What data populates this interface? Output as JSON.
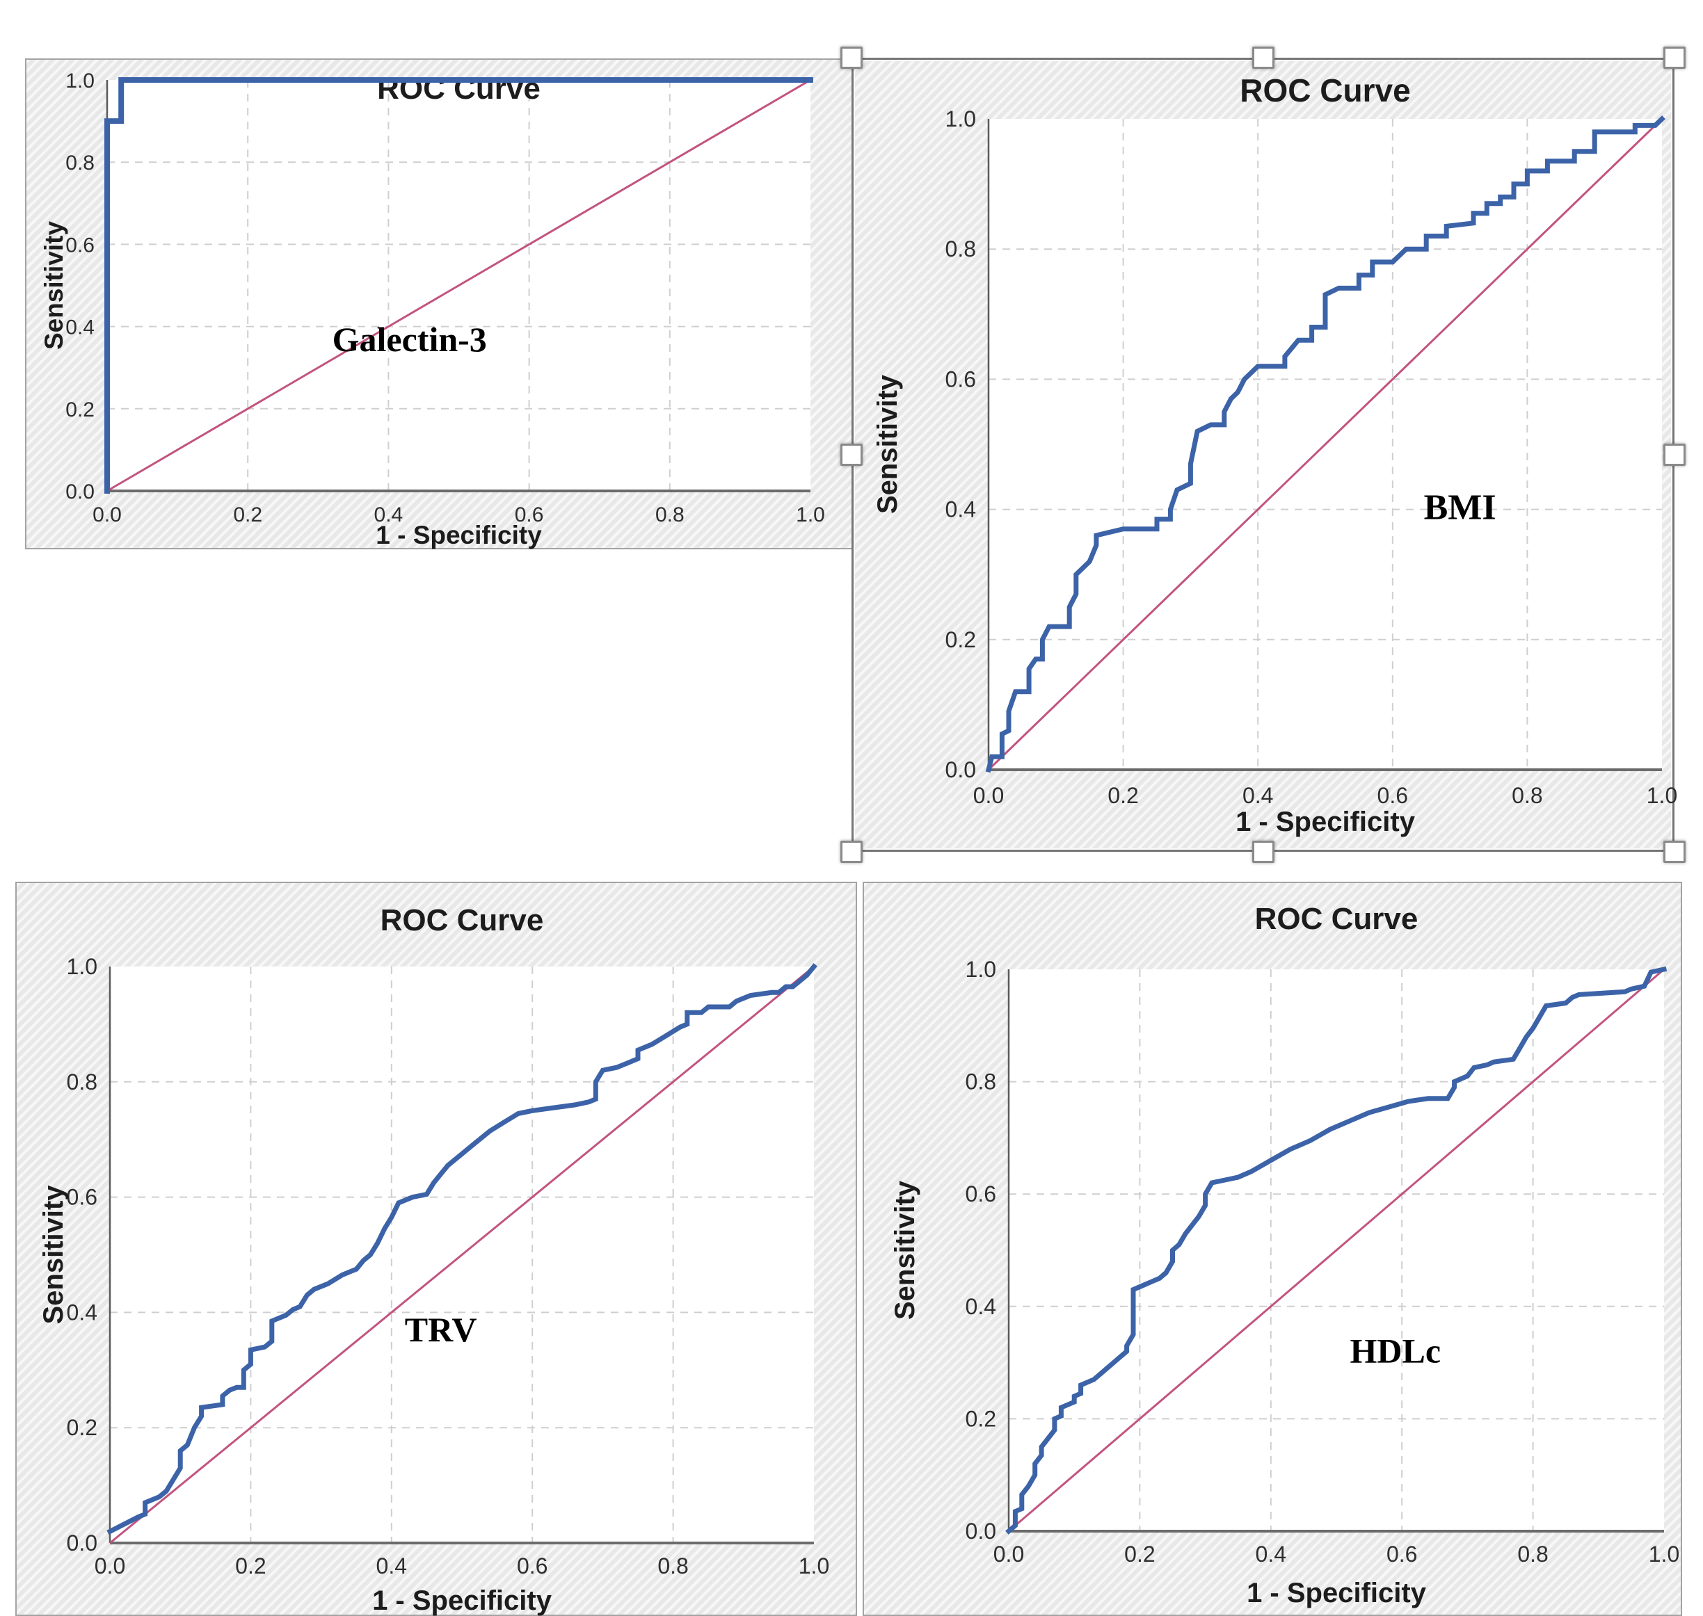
{
  "ui": {
    "selected_panel": "BMI",
    "selection_handles": [
      "top-left",
      "top-middle",
      "top-right",
      "middle-left",
      "middle-right",
      "bottom-left",
      "bottom-middle",
      "bottom-right"
    ]
  },
  "colors": {
    "roc_curve": "#3C63A8",
    "reference_line": "#C2547F",
    "grid": "#cfcfcf",
    "axis": "#6b6b6b",
    "text": "#1c1c1c"
  },
  "chart_data": [
    {
      "type": "line",
      "panel": "top-left",
      "title": "ROC Curve",
      "xlabel": "1 - Specificity",
      "ylabel": "Sensitivity",
      "xlim": [
        0,
        1
      ],
      "ylim": [
        0,
        1
      ],
      "xticks": [
        "0.0",
        "0.2",
        "0.4",
        "0.6",
        "0.8",
        "1.0"
      ],
      "yticks": [
        "1.0",
        "0.8",
        "0.6",
        "0.4",
        "0.2",
        "0.0"
      ],
      "grid": true,
      "annotation": {
        "text": "Galectin-3",
        "x": 0.43,
        "y": 0.34
      },
      "series": [
        {
          "name": "ROC curve",
          "points": [
            [
              0,
              0
            ],
            [
              0,
              0.9
            ],
            [
              0.02,
              0.9
            ],
            [
              0.02,
              1
            ],
            [
              1,
              1
            ]
          ]
        },
        {
          "name": "Reference line",
          "points": [
            [
              0,
              0
            ],
            [
              1,
              1
            ]
          ]
        }
      ]
    },
    {
      "type": "line",
      "panel": "top-right",
      "title": "ROC Curve",
      "xlabel": "1 - Specificity",
      "ylabel": "Sensitivity",
      "xlim": [
        0,
        1
      ],
      "ylim": [
        0,
        1
      ],
      "xticks": [
        "0.0",
        "0.2",
        "0.4",
        "0.6",
        "0.8",
        "1.0"
      ],
      "yticks": [
        "1.0",
        "0.8",
        "0.6",
        "0.4",
        "0.2",
        "0.0"
      ],
      "grid": true,
      "annotation": {
        "text": "BMI",
        "x": 0.7,
        "y": 0.385
      },
      "series": [
        {
          "name": "ROC curve",
          "points": [
            [
              0,
              0
            ],
            [
              0.005,
              0.02
            ],
            [
              0.02,
              0.02
            ],
            [
              0.02,
              0.055
            ],
            [
              0.03,
              0.06
            ],
            [
              0.03,
              0.09
            ],
            [
              0.04,
              0.12
            ],
            [
              0.06,
              0.12
            ],
            [
              0.06,
              0.155
            ],
            [
              0.07,
              0.17
            ],
            [
              0.08,
              0.17
            ],
            [
              0.08,
              0.2
            ],
            [
              0.09,
              0.22
            ],
            [
              0.12,
              0.22
            ],
            [
              0.12,
              0.25
            ],
            [
              0.13,
              0.27
            ],
            [
              0.13,
              0.3
            ],
            [
              0.15,
              0.32
            ],
            [
              0.16,
              0.345
            ],
            [
              0.16,
              0.36
            ],
            [
              0.2,
              0.37
            ],
            [
              0.25,
              0.37
            ],
            [
              0.25,
              0.385
            ],
            [
              0.27,
              0.385
            ],
            [
              0.27,
              0.4
            ],
            [
              0.28,
              0.43
            ],
            [
              0.3,
              0.44
            ],
            [
              0.3,
              0.47
            ],
            [
              0.31,
              0.52
            ],
            [
              0.33,
              0.53
            ],
            [
              0.35,
              0.53
            ],
            [
              0.35,
              0.55
            ],
            [
              0.36,
              0.57
            ],
            [
              0.37,
              0.58
            ],
            [
              0.38,
              0.6
            ],
            [
              0.4,
              0.62
            ],
            [
              0.44,
              0.62
            ],
            [
              0.44,
              0.635
            ],
            [
              0.46,
              0.66
            ],
            [
              0.48,
              0.66
            ],
            [
              0.48,
              0.68
            ],
            [
              0.5,
              0.68
            ],
            [
              0.5,
              0.73
            ],
            [
              0.52,
              0.74
            ],
            [
              0.55,
              0.74
            ],
            [
              0.55,
              0.76
            ],
            [
              0.57,
              0.76
            ],
            [
              0.57,
              0.78
            ],
            [
              0.6,
              0.78
            ],
            [
              0.62,
              0.8
            ],
            [
              0.65,
              0.8
            ],
            [
              0.65,
              0.82
            ],
            [
              0.68,
              0.82
            ],
            [
              0.68,
              0.835
            ],
            [
              0.72,
              0.84
            ],
            [
              0.72,
              0.855
            ],
            [
              0.74,
              0.855
            ],
            [
              0.74,
              0.87
            ],
            [
              0.76,
              0.87
            ],
            [
              0.76,
              0.88
            ],
            [
              0.78,
              0.88
            ],
            [
              0.78,
              0.9
            ],
            [
              0.8,
              0.9
            ],
            [
              0.8,
              0.92
            ],
            [
              0.83,
              0.92
            ],
            [
              0.83,
              0.935
            ],
            [
              0.87,
              0.935
            ],
            [
              0.87,
              0.95
            ],
            [
              0.9,
              0.95
            ],
            [
              0.9,
              0.98
            ],
            [
              0.96,
              0.98
            ],
            [
              0.96,
              0.99
            ],
            [
              0.99,
              0.99
            ],
            [
              1,
              1
            ]
          ]
        },
        {
          "name": "Reference line",
          "points": [
            [
              0,
              0
            ],
            [
              1,
              1
            ]
          ]
        }
      ]
    },
    {
      "type": "line",
      "panel": "bottom-left",
      "title": "ROC Curve",
      "xlabel": "1 - Specificity",
      "ylabel": "Sensitivity",
      "xlim": [
        0,
        1
      ],
      "ylim": [
        0,
        1
      ],
      "xticks": [
        "0.0",
        "0.2",
        "0.4",
        "0.6",
        "0.8",
        "1.0"
      ],
      "yticks": [
        "1.0",
        "0.8",
        "0.6",
        "0.4",
        "0.2",
        "0.0"
      ],
      "grid": true,
      "annotation": {
        "text": "TRV",
        "x": 0.47,
        "y": 0.35
      },
      "series": [
        {
          "name": "ROC curve",
          "points": [
            [
              0,
              0.02
            ],
            [
              0.04,
              0.045
            ],
            [
              0.05,
              0.05
            ],
            [
              0.05,
              0.07
            ],
            [
              0.07,
              0.08
            ],
            [
              0.08,
              0.09
            ],
            [
              0.09,
              0.11
            ],
            [
              0.1,
              0.13
            ],
            [
              0.1,
              0.16
            ],
            [
              0.11,
              0.17
            ],
            [
              0.12,
              0.2
            ],
            [
              0.13,
              0.22
            ],
            [
              0.13,
              0.235
            ],
            [
              0.16,
              0.24
            ],
            [
              0.16,
              0.255
            ],
            [
              0.17,
              0.265
            ],
            [
              0.18,
              0.27
            ],
            [
              0.19,
              0.27
            ],
            [
              0.19,
              0.3
            ],
            [
              0.2,
              0.31
            ],
            [
              0.2,
              0.335
            ],
            [
              0.22,
              0.34
            ],
            [
              0.23,
              0.35
            ],
            [
              0.23,
              0.385
            ],
            [
              0.25,
              0.395
            ],
            [
              0.26,
              0.405
            ],
            [
              0.27,
              0.41
            ],
            [
              0.28,
              0.43
            ],
            [
              0.29,
              0.44
            ],
            [
              0.31,
              0.45
            ],
            [
              0.33,
              0.465
            ],
            [
              0.35,
              0.475
            ],
            [
              0.36,
              0.49
            ],
            [
              0.37,
              0.5
            ],
            [
              0.38,
              0.52
            ],
            [
              0.39,
              0.545
            ],
            [
              0.4,
              0.565
            ],
            [
              0.41,
              0.59
            ],
            [
              0.43,
              0.6
            ],
            [
              0.45,
              0.605
            ],
            [
              0.46,
              0.625
            ],
            [
              0.47,
              0.64
            ],
            [
              0.48,
              0.655
            ],
            [
              0.5,
              0.675
            ],
            [
              0.52,
              0.695
            ],
            [
              0.54,
              0.715
            ],
            [
              0.56,
              0.73
            ],
            [
              0.58,
              0.745
            ],
            [
              0.6,
              0.75
            ],
            [
              0.63,
              0.755
            ],
            [
              0.66,
              0.76
            ],
            [
              0.68,
              0.765
            ],
            [
              0.69,
              0.77
            ],
            [
              0.69,
              0.8
            ],
            [
              0.7,
              0.82
            ],
            [
              0.72,
              0.825
            ],
            [
              0.74,
              0.835
            ],
            [
              0.75,
              0.84
            ],
            [
              0.75,
              0.855
            ],
            [
              0.77,
              0.865
            ],
            [
              0.79,
              0.88
            ],
            [
              0.81,
              0.895
            ],
            [
              0.82,
              0.9
            ],
            [
              0.82,
              0.92
            ],
            [
              0.84,
              0.92
            ],
            [
              0.85,
              0.93
            ],
            [
              0.88,
              0.93
            ],
            [
              0.89,
              0.94
            ],
            [
              0.91,
              0.95
            ],
            [
              0.94,
              0.955
            ],
            [
              0.95,
              0.955
            ],
            [
              0.96,
              0.965
            ],
            [
              0.97,
              0.965
            ],
            [
              0.98,
              0.975
            ],
            [
              0.99,
              0.985
            ],
            [
              1,
              1
            ]
          ]
        },
        {
          "name": "Reference line",
          "points": [
            [
              0,
              0
            ],
            [
              1,
              1
            ]
          ]
        }
      ]
    },
    {
      "type": "line",
      "panel": "bottom-right",
      "title": "ROC Curve",
      "xlabel": "1 - Specificity",
      "ylabel": "Sensitivity",
      "xlim": [
        0,
        1
      ],
      "ylim": [
        0,
        1
      ],
      "xticks": [
        "0.0",
        "0.2",
        "0.4",
        "0.6",
        "0.8",
        "1.0"
      ],
      "yticks": [
        "1.0",
        "0.8",
        "0.6",
        "0.4",
        "0.2",
        "0.0"
      ],
      "grid": true,
      "annotation": {
        "text": "HDLc",
        "x": 0.59,
        "y": 0.3
      },
      "series": [
        {
          "name": "ROC curve",
          "points": [
            [
              0,
              0
            ],
            [
              0.01,
              0.01
            ],
            [
              0.01,
              0.035
            ],
            [
              0.02,
              0.04
            ],
            [
              0.02,
              0.065
            ],
            [
              0.03,
              0.08
            ],
            [
              0.04,
              0.1
            ],
            [
              0.04,
              0.12
            ],
            [
              0.05,
              0.135
            ],
            [
              0.05,
              0.15
            ],
            [
              0.06,
              0.165
            ],
            [
              0.07,
              0.18
            ],
            [
              0.07,
              0.2
            ],
            [
              0.08,
              0.205
            ],
            [
              0.08,
              0.22
            ],
            [
              0.1,
              0.23
            ],
            [
              0.1,
              0.24
            ],
            [
              0.11,
              0.245
            ],
            [
              0.11,
              0.26
            ],
            [
              0.13,
              0.27
            ],
            [
              0.14,
              0.28
            ],
            [
              0.15,
              0.29
            ],
            [
              0.16,
              0.3
            ],
            [
              0.17,
              0.31
            ],
            [
              0.18,
              0.32
            ],
            [
              0.18,
              0.33
            ],
            [
              0.19,
              0.35
            ],
            [
              0.19,
              0.43
            ],
            [
              0.21,
              0.44
            ],
            [
              0.23,
              0.45
            ],
            [
              0.24,
              0.46
            ],
            [
              0.25,
              0.48
            ],
            [
              0.25,
              0.5
            ],
            [
              0.26,
              0.51
            ],
            [
              0.27,
              0.53
            ],
            [
              0.28,
              0.545
            ],
            [
              0.29,
              0.56
            ],
            [
              0.3,
              0.58
            ],
            [
              0.3,
              0.6
            ],
            [
              0.31,
              0.62
            ],
            [
              0.33,
              0.625
            ],
            [
              0.35,
              0.63
            ],
            [
              0.37,
              0.64
            ],
            [
              0.4,
              0.66
            ],
            [
              0.43,
              0.68
            ],
            [
              0.46,
              0.695
            ],
            [
              0.49,
              0.715
            ],
            [
              0.52,
              0.73
            ],
            [
              0.55,
              0.745
            ],
            [
              0.58,
              0.755
            ],
            [
              0.61,
              0.765
            ],
            [
              0.64,
              0.77
            ],
            [
              0.67,
              0.77
            ],
            [
              0.68,
              0.79
            ],
            [
              0.68,
              0.8
            ],
            [
              0.7,
              0.81
            ],
            [
              0.71,
              0.825
            ],
            [
              0.73,
              0.83
            ],
            [
              0.74,
              0.835
            ],
            [
              0.77,
              0.84
            ],
            [
              0.78,
              0.86
            ],
            [
              0.79,
              0.88
            ],
            [
              0.8,
              0.895
            ],
            [
              0.81,
              0.915
            ],
            [
              0.82,
              0.935
            ],
            [
              0.85,
              0.94
            ],
            [
              0.86,
              0.95
            ],
            [
              0.87,
              0.955
            ],
            [
              0.94,
              0.96
            ],
            [
              0.95,
              0.965
            ],
            [
              0.97,
              0.97
            ],
            [
              0.98,
              0.995
            ],
            [
              1,
              1
            ]
          ]
        },
        {
          "name": "Reference line",
          "points": [
            [
              0,
              0
            ],
            [
              1,
              1
            ]
          ]
        }
      ]
    }
  ]
}
